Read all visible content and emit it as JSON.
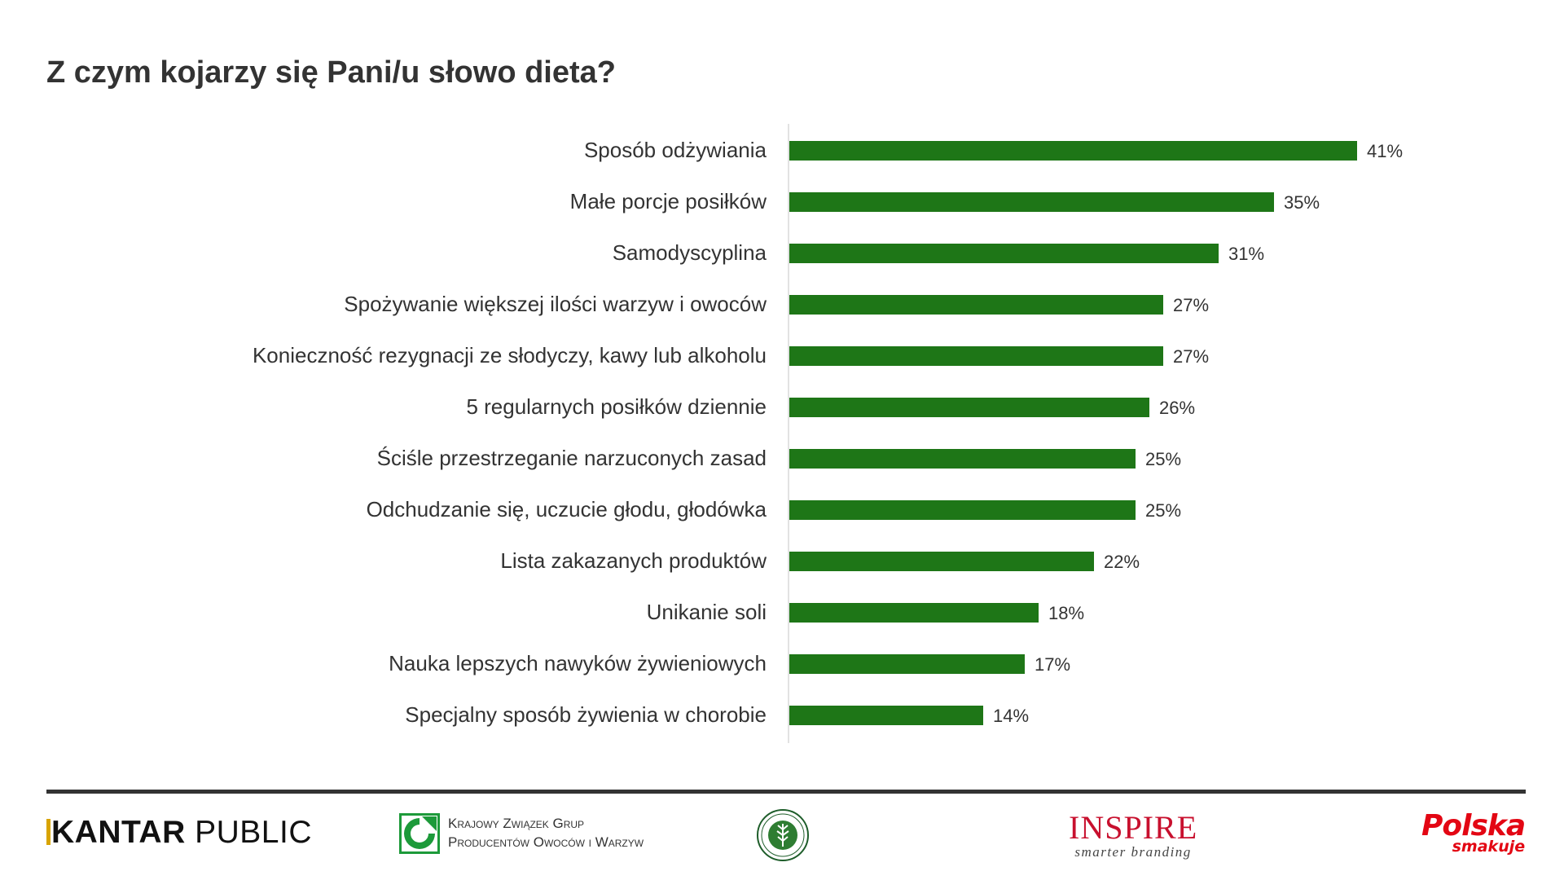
{
  "title": "Z czym kojarzy się Pani/u słowo dieta?",
  "chart_data": {
    "type": "bar",
    "orientation": "horizontal",
    "categories": [
      "Sposób odżywiania",
      "Małe porcje posiłków",
      "Samodyscyplina",
      "Spożywanie większej ilości warzyw i owoców",
      "Konieczność rezygnacji ze słodyczy, kawy lub alkoholu",
      "5 regularnych posiłków dziennie",
      "Ściśle przestrzeganie narzuconych zasad",
      "Odchudzanie się, uczucie głodu, głodówka",
      "Lista zakazanych produktów",
      "Unikanie soli",
      "Nauka lepszych nawyków żywieniowych",
      "Specjalny sposób żywienia w chorobie"
    ],
    "values": [
      41,
      35,
      31,
      27,
      27,
      26,
      25,
      25,
      22,
      18,
      17,
      14
    ],
    "value_labels": [
      "41%",
      "35%",
      "31%",
      "27%",
      "27%",
      "26%",
      "25%",
      "25%",
      "22%",
      "18%",
      "17%",
      "14%"
    ],
    "bar_color": "#1e7617",
    "xlim": [
      0,
      41
    ],
    "grid": false,
    "legend": "none"
  },
  "footer": {
    "kantar": {
      "part1": "KANTAR",
      "part2": "PUBLIC",
      "accent_color": "#d8a400"
    },
    "kzgp": {
      "line1": "Krajowy Związek Grup",
      "line2": "Producentów Owoców i Warzyw",
      "color": "#1d9a3a"
    },
    "inspire": {
      "name": "INSPIRE",
      "tagline": "smarter branding",
      "color": "#c8102e"
    },
    "polska": {
      "name": "Polska",
      "sub": "smakuje",
      "color": "#e30613"
    },
    "seal": {
      "icon": "ministry-seal-icon"
    }
  }
}
